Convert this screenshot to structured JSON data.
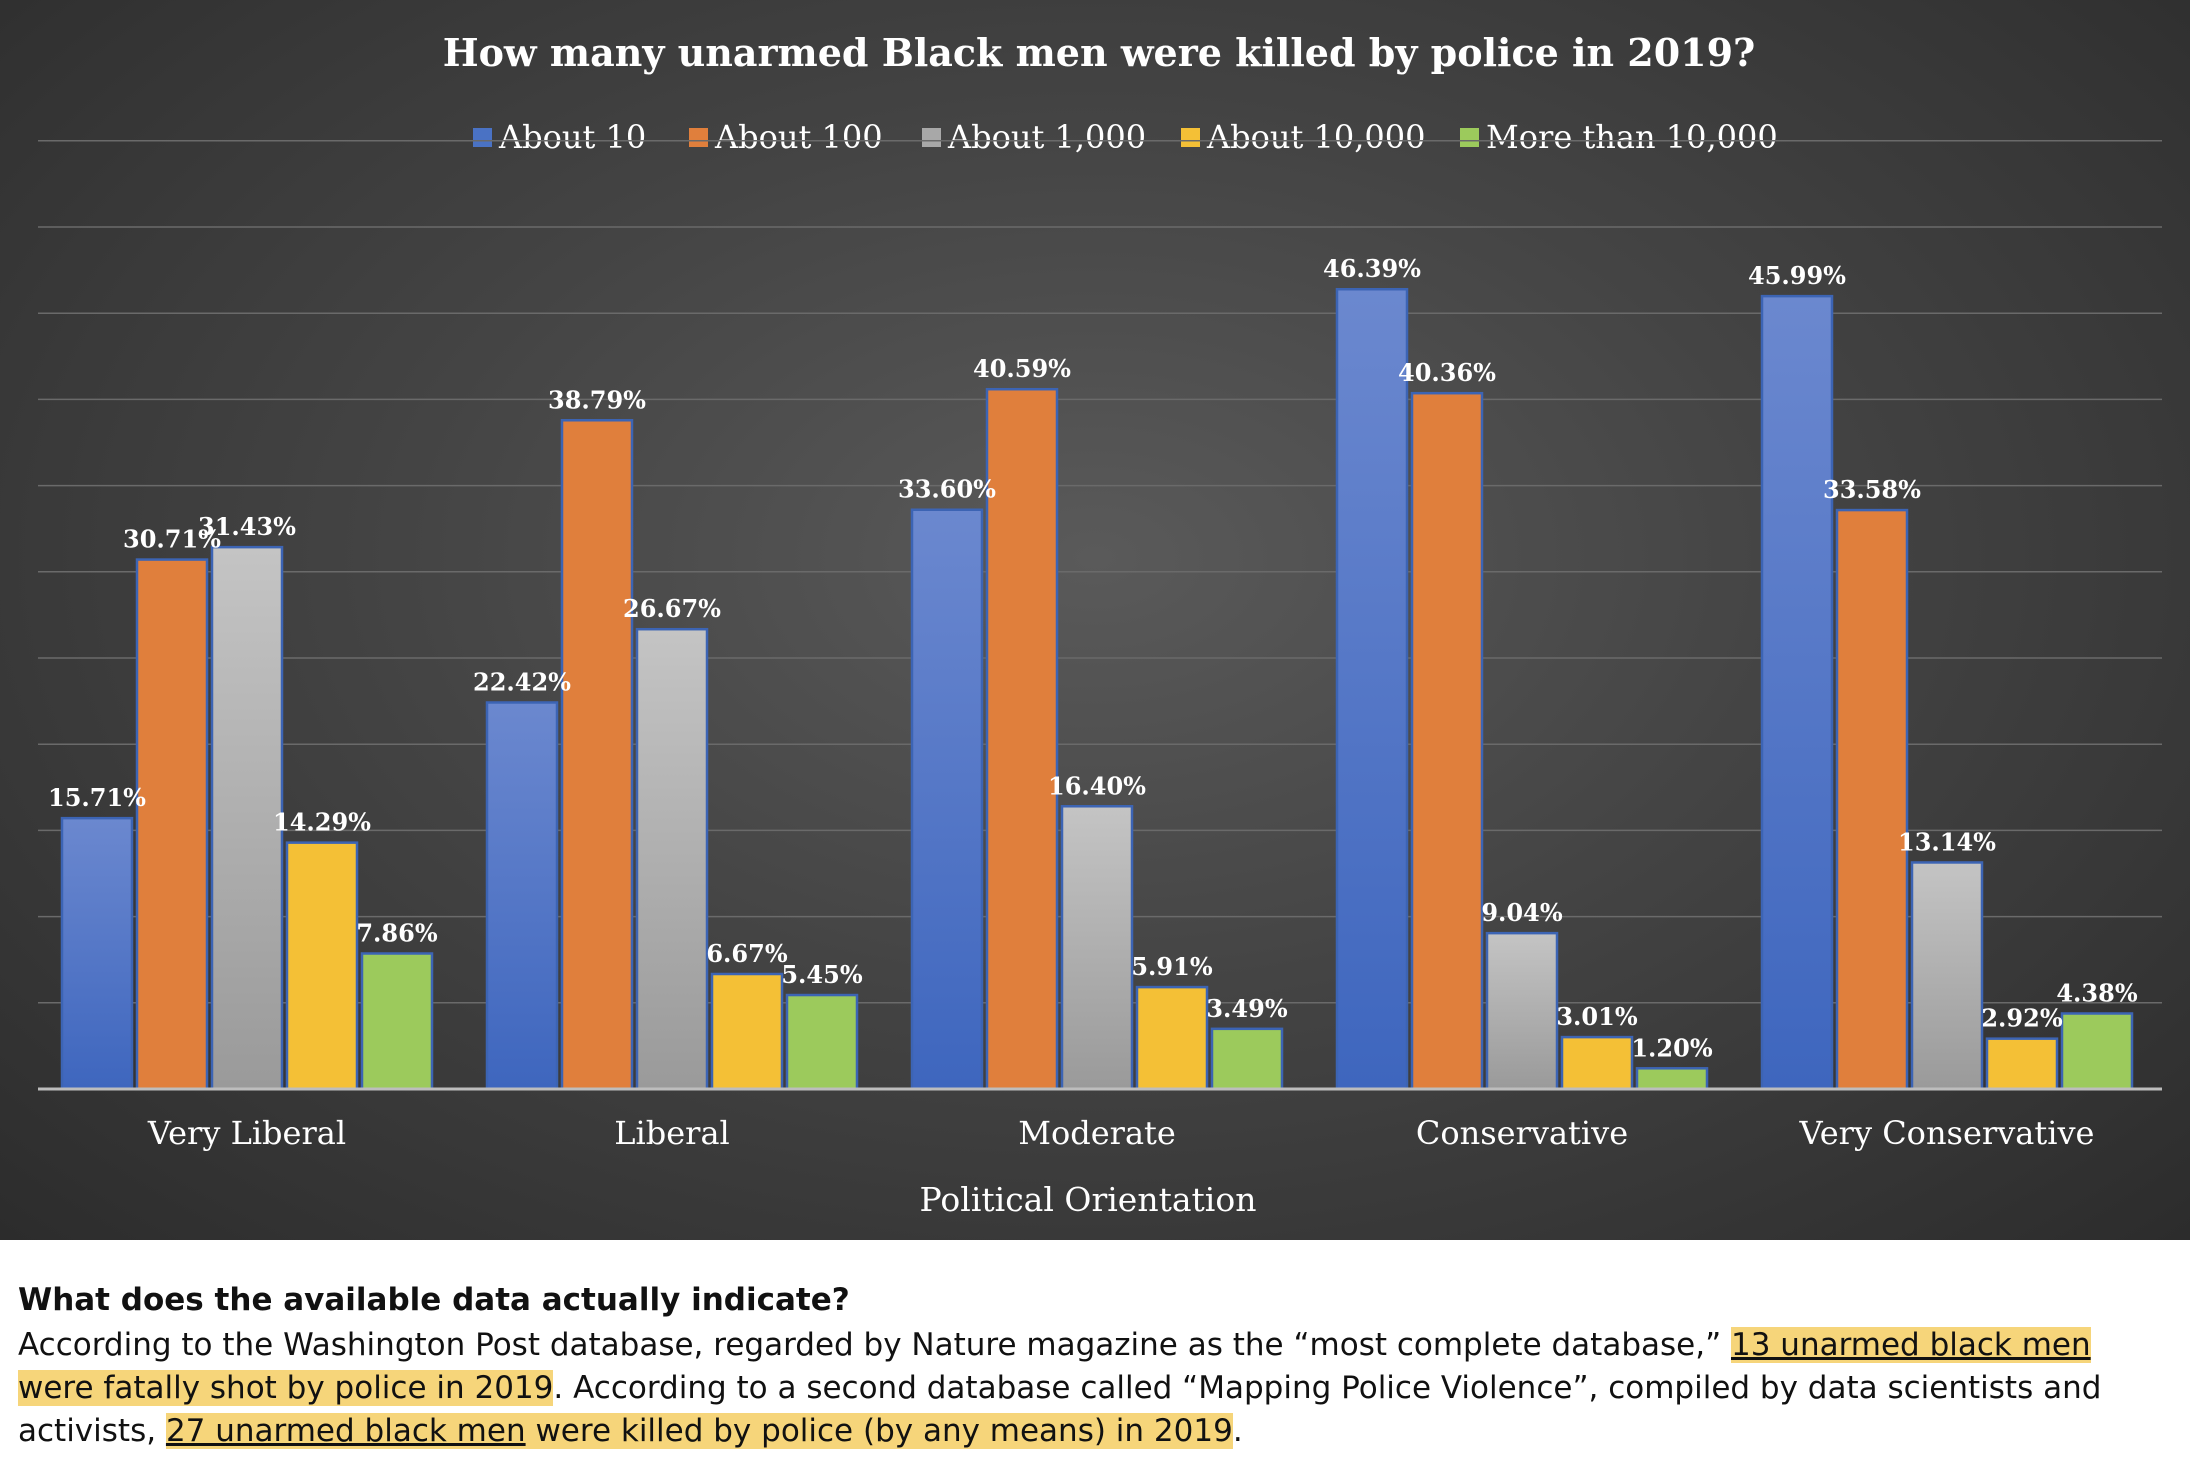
{
  "chart_data": {
    "type": "bar",
    "title": "How many unarmed Black men were killed by police in 2019?",
    "xlabel": "Political Orientation",
    "ylabel": "",
    "ylim": [
      0,
      50
    ],
    "grid": true,
    "legend_position": "top",
    "categories": [
      "Very Liberal",
      "Liberal",
      "Moderate",
      "Conservative",
      "Very Conservative"
    ],
    "series": [
      {
        "name": "About 10",
        "color": "#4a72c4",
        "values": [
          15.71,
          22.42,
          33.6,
          46.39,
          45.99
        ],
        "labels": [
          "15.71%",
          "22.42%",
          "33.60%",
          "46.39%",
          "45.99%"
        ]
      },
      {
        "name": "About 100",
        "color": "#e07f3c",
        "values": [
          30.71,
          38.79,
          40.59,
          40.36,
          33.58
        ],
        "labels": [
          "30.71%",
          "38.79%",
          "40.59%",
          "40.36%",
          "33.58%"
        ]
      },
      {
        "name": "About 1,000",
        "color": "#a8a8a8",
        "values": [
          31.43,
          26.67,
          16.4,
          9.04,
          13.14
        ],
        "labels": [
          "31.43%",
          "26.67%",
          "16.40%",
          "9.04%",
          "13.14%"
        ]
      },
      {
        "name": "About 10,000",
        "color": "#f4c036",
        "values": [
          14.29,
          6.67,
          5.91,
          3.01,
          2.92
        ],
        "labels": [
          "14.29%",
          "6.67%",
          "5.91%",
          "3.01%",
          "2.92%"
        ]
      },
      {
        "name": "More than 10,000",
        "color": "#9cca5c",
        "values": [
          7.86,
          5.45,
          3.49,
          1.2,
          4.38
        ],
        "labels": [
          "7.86%",
          "5.45%",
          "3.49%",
          "1.20%",
          "4.38%"
        ]
      }
    ]
  },
  "note": {
    "heading": "What does the available data actually indicate?",
    "part1": "According to the Washington Post database, regarded by Nature magazine as the “most complete database,” ",
    "hl1_link": "13 unarmed black men",
    "hl1_rest": " were fatally shot by police in 2019",
    "part2": ". According to a second database called “Mapping Police Violence”, compiled by data scientists and activists, ",
    "hl2_link": "27 unarmed black men",
    "hl2_rest": " were killed by police (by any means) in 2019",
    "part3": "."
  }
}
